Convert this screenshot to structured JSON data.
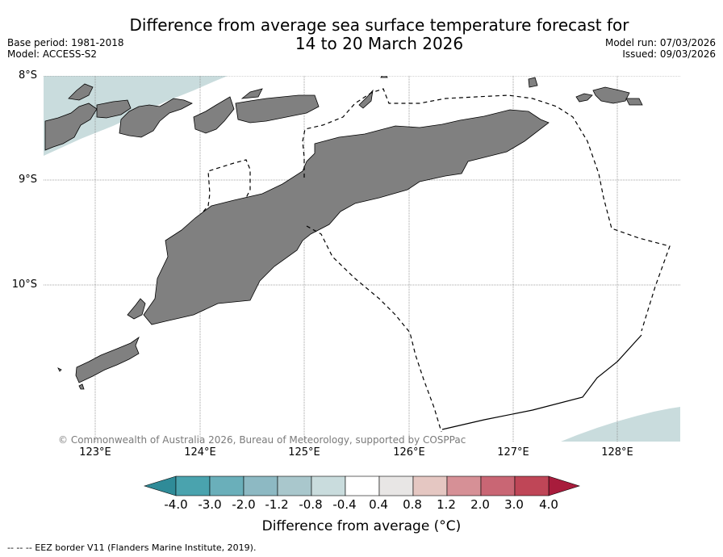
{
  "title": {
    "line1": "Difference from average sea surface temperature forecast for",
    "line2": "14 to 20 March 2026"
  },
  "meta_left": {
    "base_period": "Base period: 1981-2018",
    "model": "Model: ACCESS-S2"
  },
  "meta_right": {
    "model_run": "Model run: 07/03/2026",
    "issued": "Issued: 09/03/2026"
  },
  "axes": {
    "lat_labels": [
      "8°S",
      "9°S",
      "10°S"
    ],
    "lon_labels": [
      "123°E",
      "124°E",
      "125°E",
      "126°E",
      "127°E",
      "128°E"
    ]
  },
  "copyright": "© Commonwealth of Australia 2026, Bureau of Meteorology, supported by COSPPac",
  "colorbar": {
    "ticks": [
      "-4.0",
      "-3.0",
      "-2.0",
      "-1.2",
      "-0.8",
      "-0.4",
      "0.4",
      "0.8",
      "1.2",
      "2.0",
      "3.0",
      "4.0"
    ],
    "colors": [
      "#2f8b98",
      "#4aa3ae",
      "#6aafba",
      "#8db9c3",
      "#a9c7cc",
      "#c9dcdd",
      "#ffffff",
      "#e8e6e5",
      "#e5c7c2",
      "#d69096",
      "#c96674",
      "#bf4657",
      "#a81c3c"
    ],
    "title": "Difference from average (°C)"
  },
  "legend_note": "-- -- -- EEZ border V11 (Flanders Marine Institute, 2019).",
  "palette": {
    "land": "#808080",
    "anomaly_minus_08": "#c9dcdd",
    "grid": "#888888"
  }
}
